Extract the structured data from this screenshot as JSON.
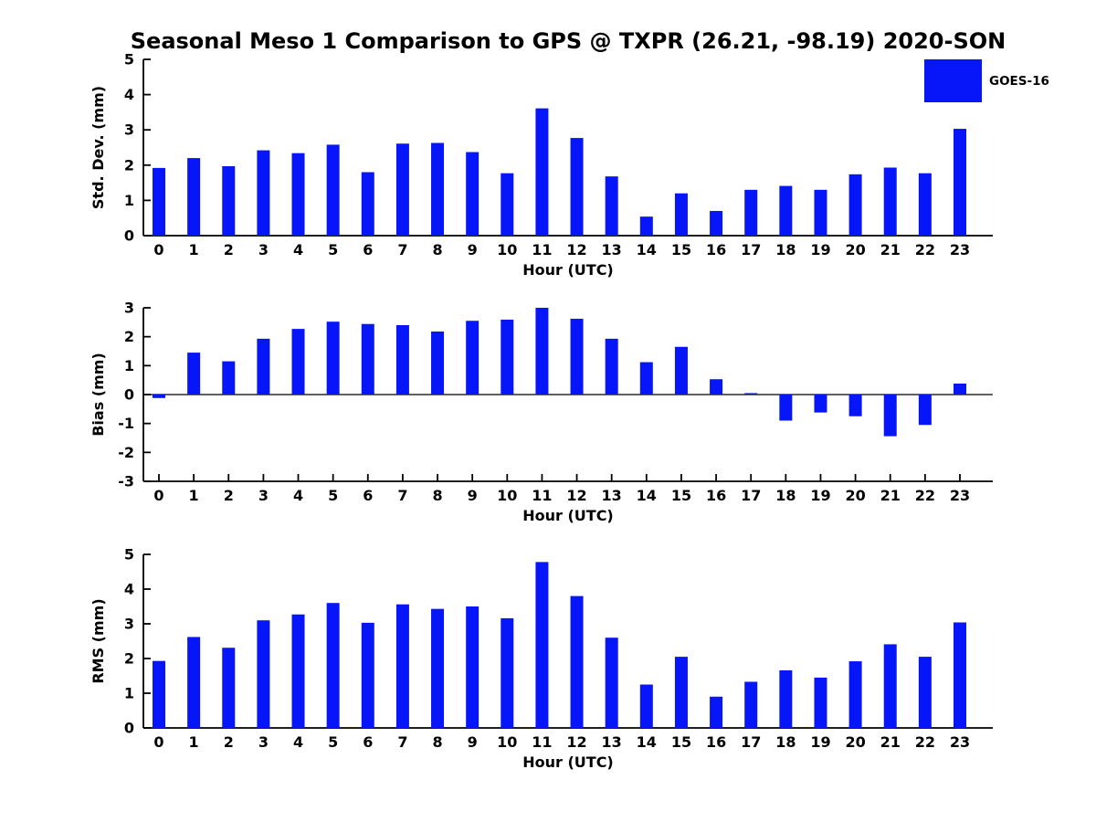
{
  "title": "Seasonal Meso 1 Comparison to GPS @ TXPR (26.21, -98.19) 2020-SON",
  "legend": {
    "label": "GOES-16",
    "position": "top-right"
  },
  "colors": {
    "bar": "#0716F8",
    "axis": "#000000",
    "text": "#000000",
    "background": "#FFFFFF"
  },
  "chart_data": [
    {
      "type": "bar",
      "name": "std-dev",
      "ylabel": "Std. Dev. (mm)",
      "xlabel": "Hour (UTC)",
      "categories": [
        "0",
        "1",
        "2",
        "3",
        "4",
        "5",
        "6",
        "7",
        "8",
        "9",
        "10",
        "11",
        "12",
        "13",
        "14",
        "15",
        "16",
        "17",
        "18",
        "19",
        "20",
        "21",
        "22",
        "23"
      ],
      "series": [
        {
          "name": "GOES-16",
          "values": [
            1.92,
            2.2,
            1.97,
            2.42,
            2.34,
            2.58,
            1.8,
            2.61,
            2.63,
            2.37,
            1.77,
            3.61,
            2.77,
            1.68,
            0.54,
            1.2,
            0.7,
            1.3,
            1.41,
            1.3,
            1.74,
            1.93,
            1.77,
            3.03
          ]
        }
      ],
      "ylim": [
        0,
        5
      ],
      "yticks": [
        "0",
        "1",
        "2",
        "3",
        "4",
        "5"
      ],
      "grid": false
    },
    {
      "type": "bar",
      "name": "bias",
      "ylabel": "Bias (mm)",
      "xlabel": "Hour (UTC)",
      "categories": [
        "0",
        "1",
        "2",
        "3",
        "4",
        "5",
        "6",
        "7",
        "8",
        "9",
        "10",
        "11",
        "12",
        "13",
        "14",
        "15",
        "16",
        "17",
        "18",
        "19",
        "20",
        "21",
        "22",
        "23"
      ],
      "series": [
        {
          "name": "GOES-16",
          "values": [
            -0.12,
            1.45,
            1.15,
            1.93,
            2.27,
            2.52,
            2.44,
            2.4,
            2.18,
            2.55,
            2.59,
            3.0,
            2.62,
            1.93,
            1.12,
            1.65,
            0.53,
            0.05,
            -0.9,
            -0.62,
            -0.75,
            -1.44,
            -1.05,
            0.38
          ]
        }
      ],
      "ylim": [
        -3,
        3
      ],
      "yticks": [
        "-3",
        "-2",
        "-1",
        "0",
        "1",
        "2",
        "3"
      ],
      "grid": false
    },
    {
      "type": "bar",
      "name": "rms",
      "ylabel": "RMS (mm)",
      "xlabel": "Hour (UTC)",
      "categories": [
        "0",
        "1",
        "2",
        "3",
        "4",
        "5",
        "6",
        "7",
        "8",
        "9",
        "10",
        "11",
        "12",
        "13",
        "14",
        "15",
        "16",
        "17",
        "18",
        "19",
        "20",
        "21",
        "22",
        "23"
      ],
      "series": [
        {
          "name": "GOES-16",
          "values": [
            1.93,
            2.62,
            2.31,
            3.1,
            3.27,
            3.6,
            3.03,
            3.56,
            3.43,
            3.5,
            3.16,
            4.78,
            3.8,
            2.6,
            1.25,
            2.05,
            0.9,
            1.33,
            1.66,
            1.45,
            1.92,
            2.41,
            2.05,
            3.04
          ]
        }
      ],
      "ylim": [
        0,
        5
      ],
      "yticks": [
        "0",
        "1",
        "2",
        "3",
        "4",
        "5"
      ],
      "grid": false
    }
  ]
}
